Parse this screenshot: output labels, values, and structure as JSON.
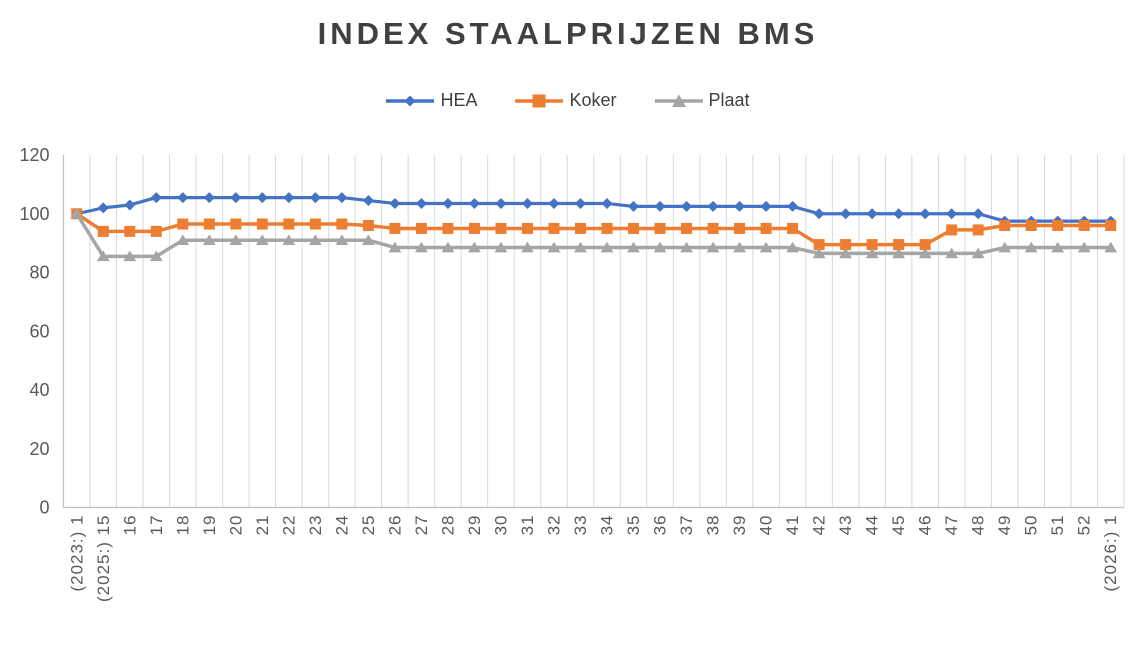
{
  "window": {
    "background": "#FFFFFF"
  },
  "chart_data": {
    "type": "line",
    "title": "INDEX STAALPRIJZEN BMS",
    "xlabel": "",
    "ylabel": "",
    "categories": [
      "(2023:) 1",
      "(2025:) 15",
      "16",
      "17",
      "18",
      "19",
      "20",
      "21",
      "22",
      "23",
      "24",
      "25",
      "26",
      "27",
      "28",
      "29",
      "30",
      "31",
      "32",
      "33",
      "34",
      "35",
      "36",
      "37",
      "38",
      "39",
      "40",
      "41",
      "42",
      "43",
      "44",
      "45",
      "46",
      "47",
      "48",
      "49",
      "50",
      "51",
      "52",
      "(2026:) 1"
    ],
    "series": [
      {
        "name": "HEA",
        "color": "#4472C4",
        "marker": "diamond",
        "line_width": 3.2,
        "values": [
          100,
          102,
          103,
          105.5,
          105.5,
          105.5,
          105.5,
          105.5,
          105.5,
          105.5,
          105.5,
          104.5,
          103.5,
          103.5,
          103.5,
          103.5,
          103.5,
          103.5,
          103.5,
          103.5,
          103.5,
          102.5,
          102.5,
          102.5,
          102.5,
          102.5,
          102.5,
          102.5,
          100,
          100,
          100,
          100,
          100,
          100,
          100,
          97.5,
          97.5,
          97.5,
          97.5,
          97.5
        ]
      },
      {
        "name": "Koker",
        "color": "#ED7D31",
        "marker": "square",
        "line_width": 3.5,
        "values": [
          100,
          94,
          94,
          94,
          96.5,
          96.5,
          96.5,
          96.5,
          96.5,
          96.5,
          96.5,
          96,
          95,
          95,
          95,
          95,
          95,
          95,
          95,
          95,
          95,
          95,
          95,
          95,
          95,
          95,
          95,
          95,
          89.5,
          89.5,
          89.5,
          89.5,
          89.5,
          94.5,
          94.5,
          96,
          96,
          96,
          96,
          96
        ]
      },
      {
        "name": "Plaat",
        "color": "#A5A5A5",
        "marker": "triangle",
        "line_width": 3.5,
        "values": [
          100,
          85.5,
          85.5,
          85.5,
          91,
          91,
          91,
          91,
          91,
          91,
          91,
          91,
          88.5,
          88.5,
          88.5,
          88.5,
          88.5,
          88.5,
          88.5,
          88.5,
          88.5,
          88.5,
          88.5,
          88.5,
          88.5,
          88.5,
          88.5,
          88.5,
          86.5,
          86.5,
          86.5,
          86.5,
          86.5,
          86.5,
          86.5,
          88.5,
          88.5,
          88.5,
          88.5,
          88.5
        ]
      }
    ],
    "ylim": [
      0,
      120
    ],
    "yticks": [
      0,
      20,
      40,
      60,
      80,
      100,
      120
    ],
    "grid": "vertical-only",
    "legend_position": "top",
    "colors": {
      "gridline": "#D9D9D9",
      "axis_line": "#BFBFBF",
      "tick_label": "#595959",
      "title": "#404040",
      "legend_text": "#404040"
    }
  }
}
